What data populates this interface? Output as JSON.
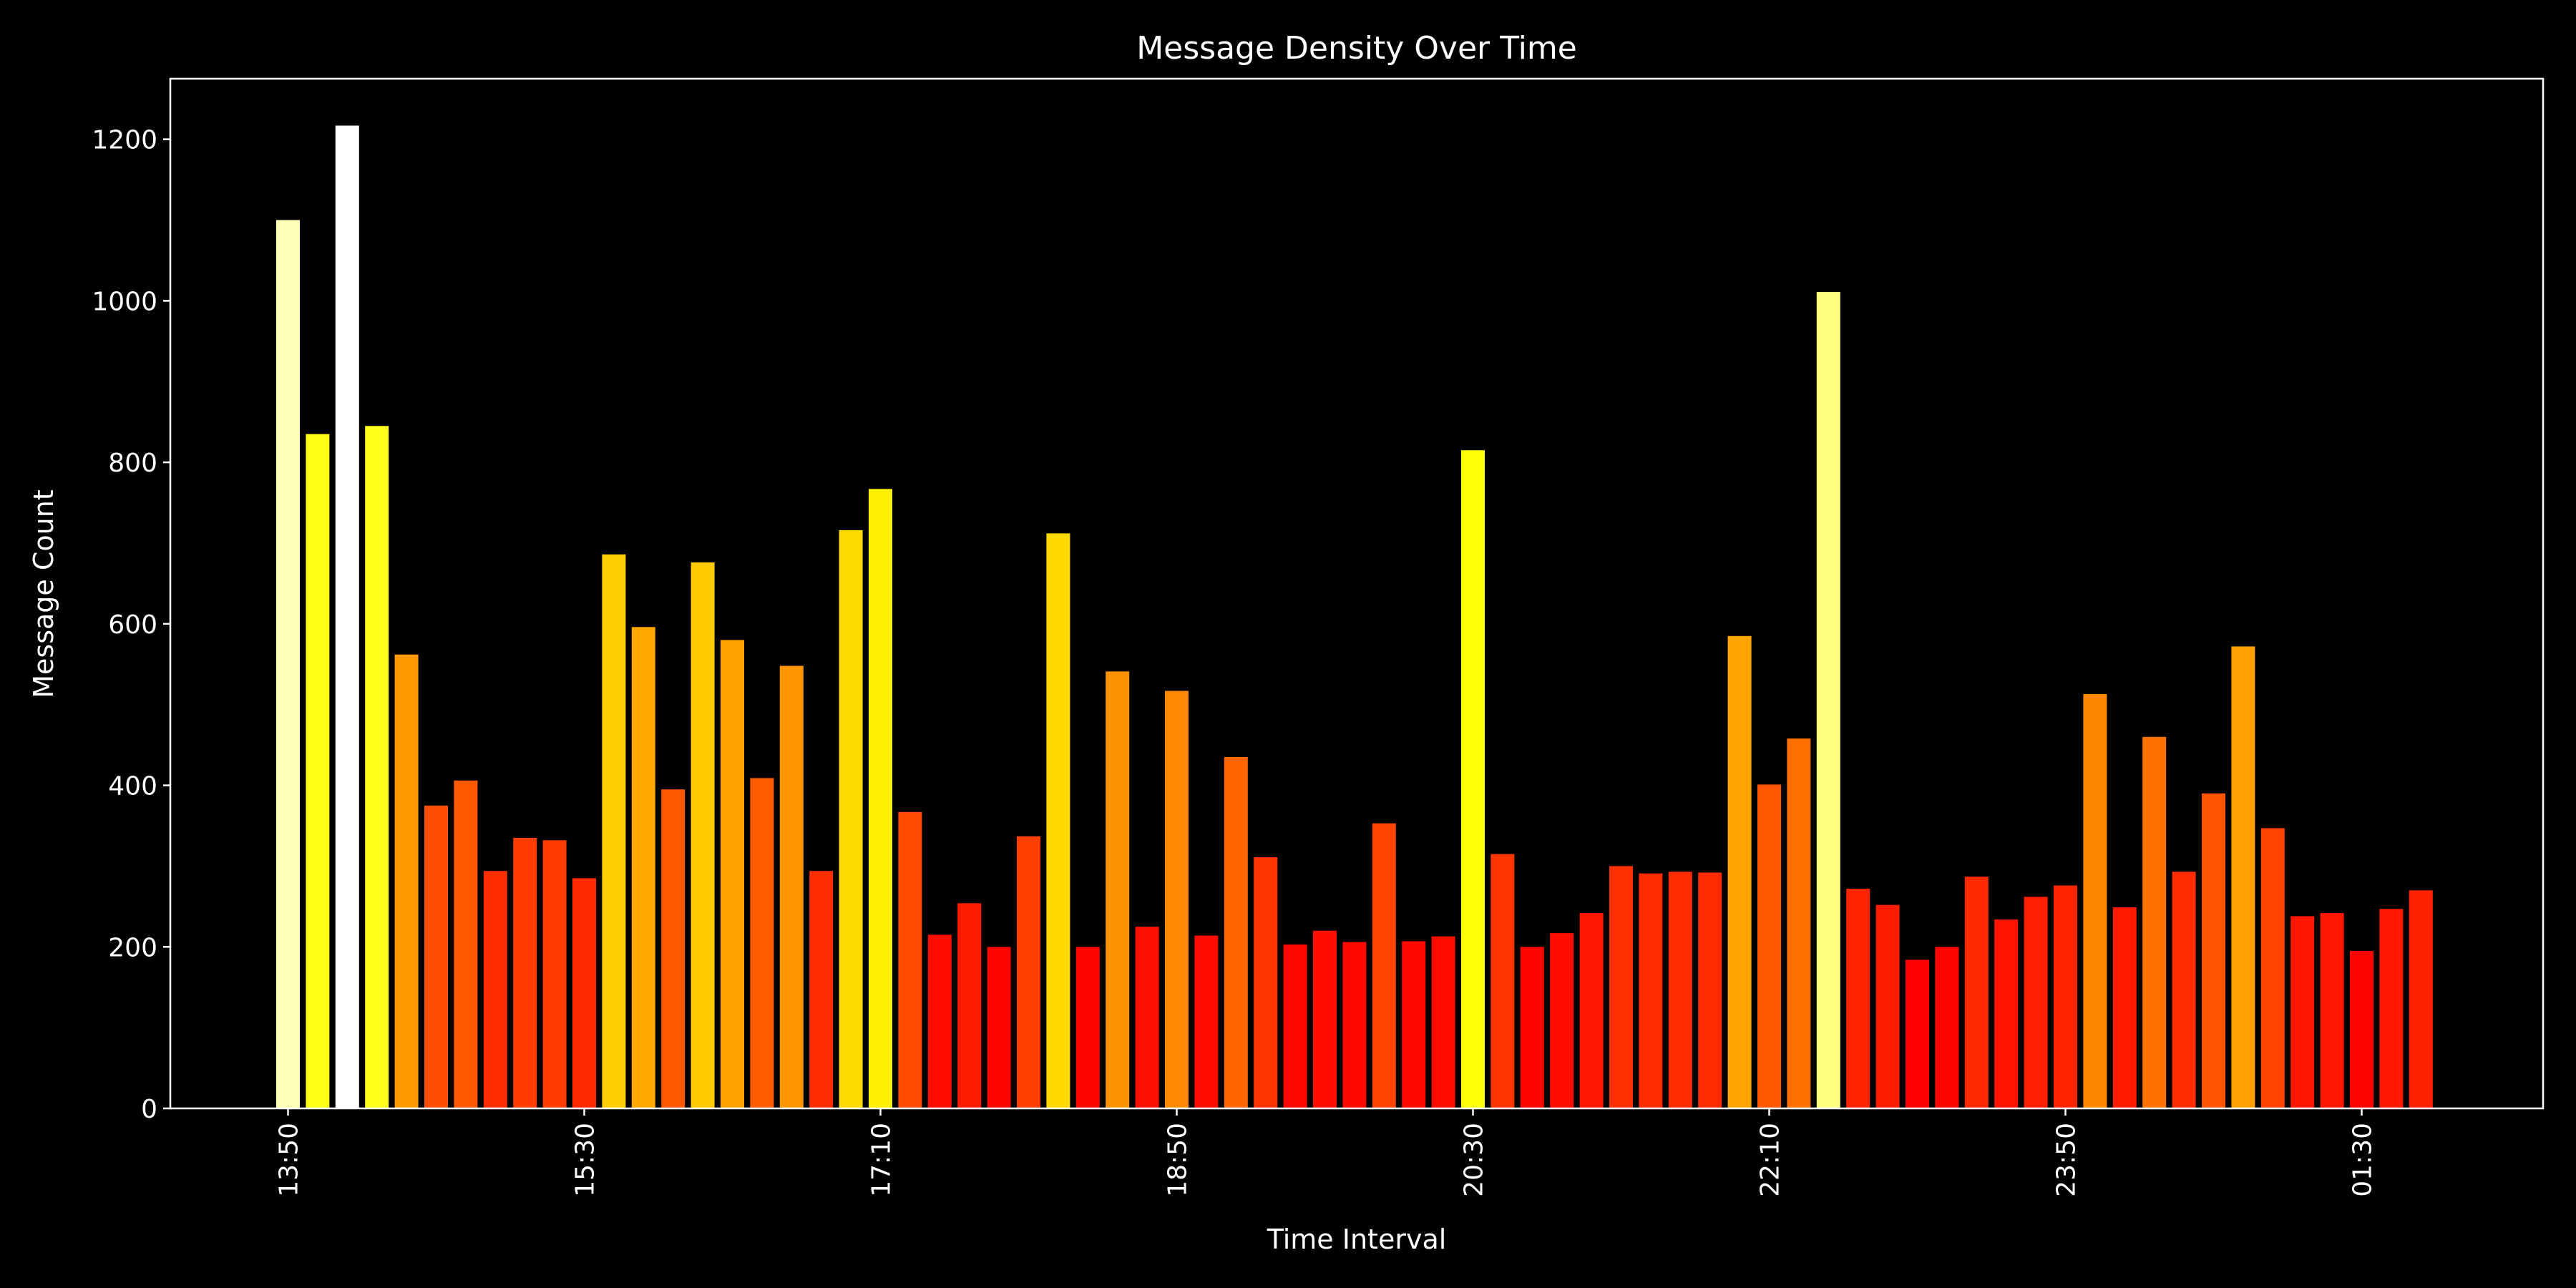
{
  "chart_data": {
    "type": "bar",
    "title": "Message Density Over Time",
    "xlabel": "Time Interval",
    "ylabel": "Message Count",
    "ylim": [
      0,
      1275
    ],
    "yticks": [
      0,
      200,
      400,
      600,
      800,
      1000,
      1200
    ],
    "xtick_labels": [
      "13:50",
      "15:30",
      "17:10",
      "18:50",
      "20:30",
      "22:10",
      "23:50",
      "01:30"
    ],
    "xtick_step": 10,
    "grid": false,
    "colormap": "hot",
    "background": "#000000",
    "values": [
      1100,
      835,
      1217,
      845,
      562,
      375,
      406,
      294,
      335,
      332,
      285,
      686,
      596,
      395,
      676,
      580,
      409,
      548,
      294,
      716,
      767,
      367,
      215,
      254,
      200,
      337,
      712,
      200,
      541,
      225,
      517,
      214,
      435,
      311,
      203,
      220,
      206,
      353,
      207,
      213,
      815,
      315,
      200,
      217,
      242,
      300,
      291,
      293,
      292,
      585,
      401,
      458,
      1011,
      272,
      252,
      184,
      200,
      287,
      234,
      262,
      276,
      513,
      249,
      460,
      293,
      390,
      572,
      347,
      238,
      242,
      195,
      247,
      270
    ]
  }
}
